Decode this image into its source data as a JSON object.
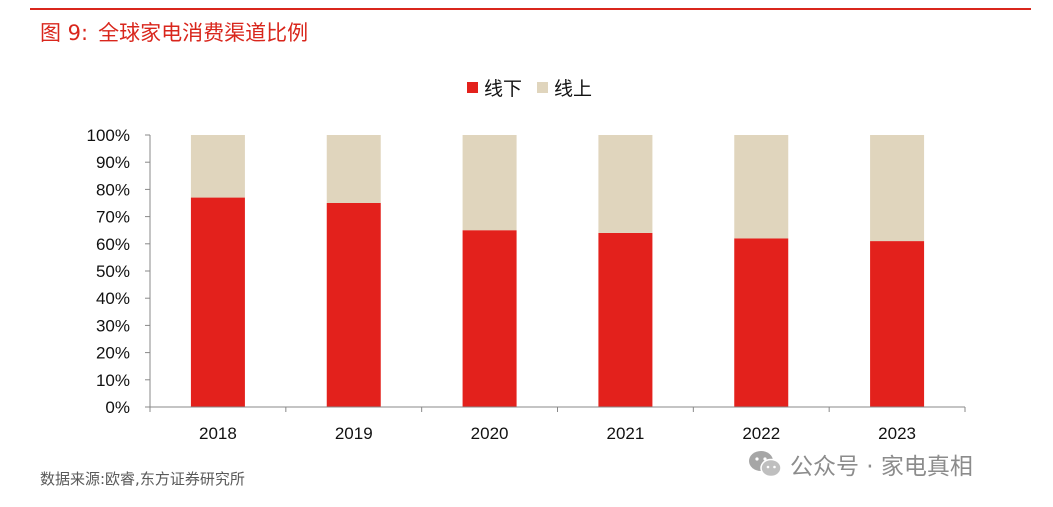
{
  "figure": {
    "label": "图 9:",
    "title": "全球家电消费渠道比例"
  },
  "source": "数据来源:欧睿,东方证券研究所",
  "watermark": {
    "text": "公众号 · 家电真相",
    "icon": "wechat-icon"
  },
  "colors": {
    "accent": "#d9261c",
    "offline": "#e3211c",
    "online": "#e0d5bd"
  },
  "chart_data": {
    "type": "bar",
    "stacked": true,
    "categories": [
      "2018",
      "2019",
      "2020",
      "2021",
      "2022",
      "2023"
    ],
    "series": [
      {
        "name": "线下",
        "values": [
          77,
          75,
          65,
          64,
          62,
          61
        ]
      },
      {
        "name": "线上",
        "values": [
          23,
          25,
          35,
          36,
          38,
          39
        ]
      }
    ],
    "y_ticks": [
      "0%",
      "10%",
      "20%",
      "30%",
      "40%",
      "50%",
      "60%",
      "70%",
      "80%",
      "90%",
      "100%"
    ],
    "ylim": [
      0,
      100
    ],
    "grid": false,
    "legend_position": "top-center"
  }
}
